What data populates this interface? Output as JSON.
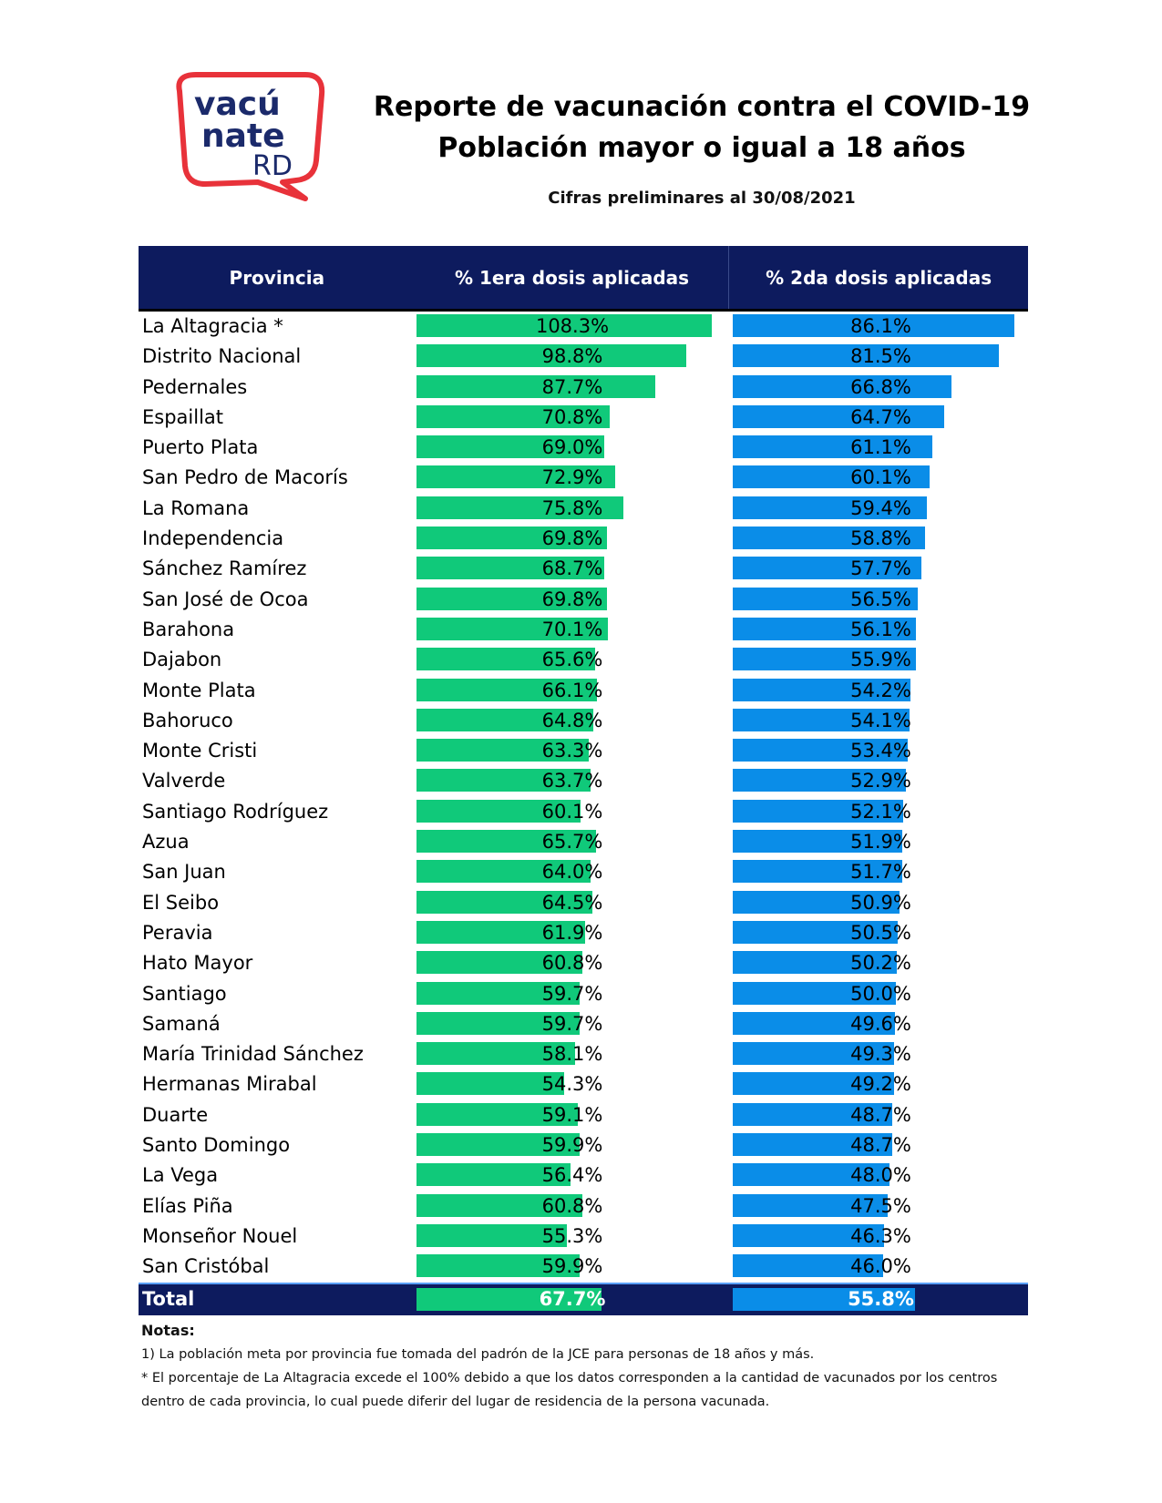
{
  "logo": {
    "line1": "vacú",
    "line2": "nate",
    "line3": "RD"
  },
  "header": {
    "title_line1": "Reporte de vacunación contra el COVID-19",
    "title_line2": "Población mayor o igual a 18 años",
    "subtitle": "Cifras preliminares al 30/08/2021"
  },
  "colors": {
    "header_bg": "#0d1b5e",
    "first_dose": "#10c97a",
    "second_dose": "#0a8de8"
  },
  "chart_data": {
    "type": "table",
    "columns": [
      "Provincia",
      "% 1era dosis aplicadas",
      "% 2da dosis aplicadas"
    ],
    "rows": [
      {
        "provincia": "La Altagracia *",
        "d1": 108.3,
        "d1_label": "108.3%",
        "d2": 86.1,
        "d2_label": "86.1%"
      },
      {
        "provincia": "Distrito Nacional",
        "d1": 98.8,
        "d1_label": "98.8%",
        "d2": 81.5,
        "d2_label": "81.5%"
      },
      {
        "provincia": "Pedernales",
        "d1": 87.7,
        "d1_label": "87.7%",
        "d2": 66.8,
        "d2_label": "66.8%"
      },
      {
        "provincia": "Espaillat",
        "d1": 70.8,
        "d1_label": "70.8%",
        "d2": 64.7,
        "d2_label": "64.7%"
      },
      {
        "provincia": "Puerto Plata",
        "d1": 69.0,
        "d1_label": "69.0%",
        "d2": 61.1,
        "d2_label": "61.1%"
      },
      {
        "provincia": "San Pedro de Macorís",
        "d1": 72.9,
        "d1_label": "72.9%",
        "d2": 60.1,
        "d2_label": "60.1%"
      },
      {
        "provincia": "La Romana",
        "d1": 75.8,
        "d1_label": "75.8%",
        "d2": 59.4,
        "d2_label": "59.4%"
      },
      {
        "provincia": "Independencia",
        "d1": 69.8,
        "d1_label": "69.8%",
        "d2": 58.8,
        "d2_label": "58.8%"
      },
      {
        "provincia": "Sánchez Ramírez",
        "d1": 68.7,
        "d1_label": "68.7%",
        "d2": 57.7,
        "d2_label": "57.7%"
      },
      {
        "provincia": "San José de Ocoa",
        "d1": 69.8,
        "d1_label": "69.8%",
        "d2": 56.5,
        "d2_label": "56.5%"
      },
      {
        "provincia": "Barahona",
        "d1": 70.1,
        "d1_label": "70.1%",
        "d2": 56.1,
        "d2_label": "56.1%"
      },
      {
        "provincia": "Dajabon",
        "d1": 65.6,
        "d1_label": "65.6%",
        "d2": 55.9,
        "d2_label": "55.9%"
      },
      {
        "provincia": "Monte Plata",
        "d1": 66.1,
        "d1_label": "66.1%",
        "d2": 54.2,
        "d2_label": "54.2%"
      },
      {
        "provincia": "Bahoruco",
        "d1": 64.8,
        "d1_label": "64.8%",
        "d2": 54.1,
        "d2_label": "54.1%"
      },
      {
        "provincia": "Monte Cristi",
        "d1": 63.3,
        "d1_label": "63.3%",
        "d2": 53.4,
        "d2_label": "53.4%"
      },
      {
        "provincia": "Valverde",
        "d1": 63.7,
        "d1_label": "63.7%",
        "d2": 52.9,
        "d2_label": "52.9%"
      },
      {
        "provincia": "Santiago Rodríguez",
        "d1": 60.1,
        "d1_label": "60.1%",
        "d2": 52.1,
        "d2_label": "52.1%"
      },
      {
        "provincia": "Azua",
        "d1": 65.7,
        "d1_label": "65.7%",
        "d2": 51.9,
        "d2_label": "51.9%"
      },
      {
        "provincia": "San Juan",
        "d1": 64.0,
        "d1_label": "64.0%",
        "d2": 51.7,
        "d2_label": "51.7%"
      },
      {
        "provincia": "El Seibo",
        "d1": 64.5,
        "d1_label": "64.5%",
        "d2": 50.9,
        "d2_label": "50.9%"
      },
      {
        "provincia": "Peravia",
        "d1": 61.9,
        "d1_label": "61.9%",
        "d2": 50.5,
        "d2_label": "50.5%"
      },
      {
        "provincia": "Hato Mayor",
        "d1": 60.8,
        "d1_label": "60.8%",
        "d2": 50.2,
        "d2_label": "50.2%"
      },
      {
        "provincia": "Santiago",
        "d1": 59.7,
        "d1_label": "59.7%",
        "d2": 50.0,
        "d2_label": "50.0%"
      },
      {
        "provincia": "Samaná",
        "d1": 59.7,
        "d1_label": "59.7%",
        "d2": 49.6,
        "d2_label": "49.6%"
      },
      {
        "provincia": "María Trinidad Sánchez",
        "d1": 58.1,
        "d1_label": "58.1%",
        "d2": 49.3,
        "d2_label": "49.3%"
      },
      {
        "provincia": "Hermanas Mirabal",
        "d1": 54.3,
        "d1_label": "54.3%",
        "d2": 49.2,
        "d2_label": "49.2%"
      },
      {
        "provincia": "Duarte",
        "d1": 59.1,
        "d1_label": "59.1%",
        "d2": 48.7,
        "d2_label": "48.7%"
      },
      {
        "provincia": "Santo Domingo",
        "d1": 59.9,
        "d1_label": "59.9%",
        "d2": 48.7,
        "d2_label": "48.7%"
      },
      {
        "provincia": "La Vega",
        "d1": 56.4,
        "d1_label": "56.4%",
        "d2": 48.0,
        "d2_label": "48.0%"
      },
      {
        "provincia": "Elías Piña",
        "d1": 60.8,
        "d1_label": "60.8%",
        "d2": 47.5,
        "d2_label": "47.5%"
      },
      {
        "provincia": "Monseñor Nouel",
        "d1": 55.3,
        "d1_label": "55.3%",
        "d2": 46.3,
        "d2_label": "46.3%"
      },
      {
        "provincia": "San Cristóbal",
        "d1": 59.9,
        "d1_label": "59.9%",
        "d2": 46.0,
        "d2_label": "46.0%"
      }
    ],
    "total": {
      "provincia": "Total",
      "d1": 67.7,
      "d1_label": "67.7%",
      "d2": 55.8,
      "d2_label": "55.8%"
    },
    "bar_max_d1": 108.3,
    "bar_max_d2": 86.1
  },
  "notes": {
    "heading": "Notas:",
    "note1": "1) La población meta por provincia fue tomada del padrón de la JCE para personas de 18 años y más.",
    "note2": "* El porcentaje de La Altagracia excede el 100% debido a que los datos corresponden a la cantidad de vacunados por los centros dentro de cada provincia, lo cual puede diferir del lugar de residencia de la persona vacunada."
  }
}
